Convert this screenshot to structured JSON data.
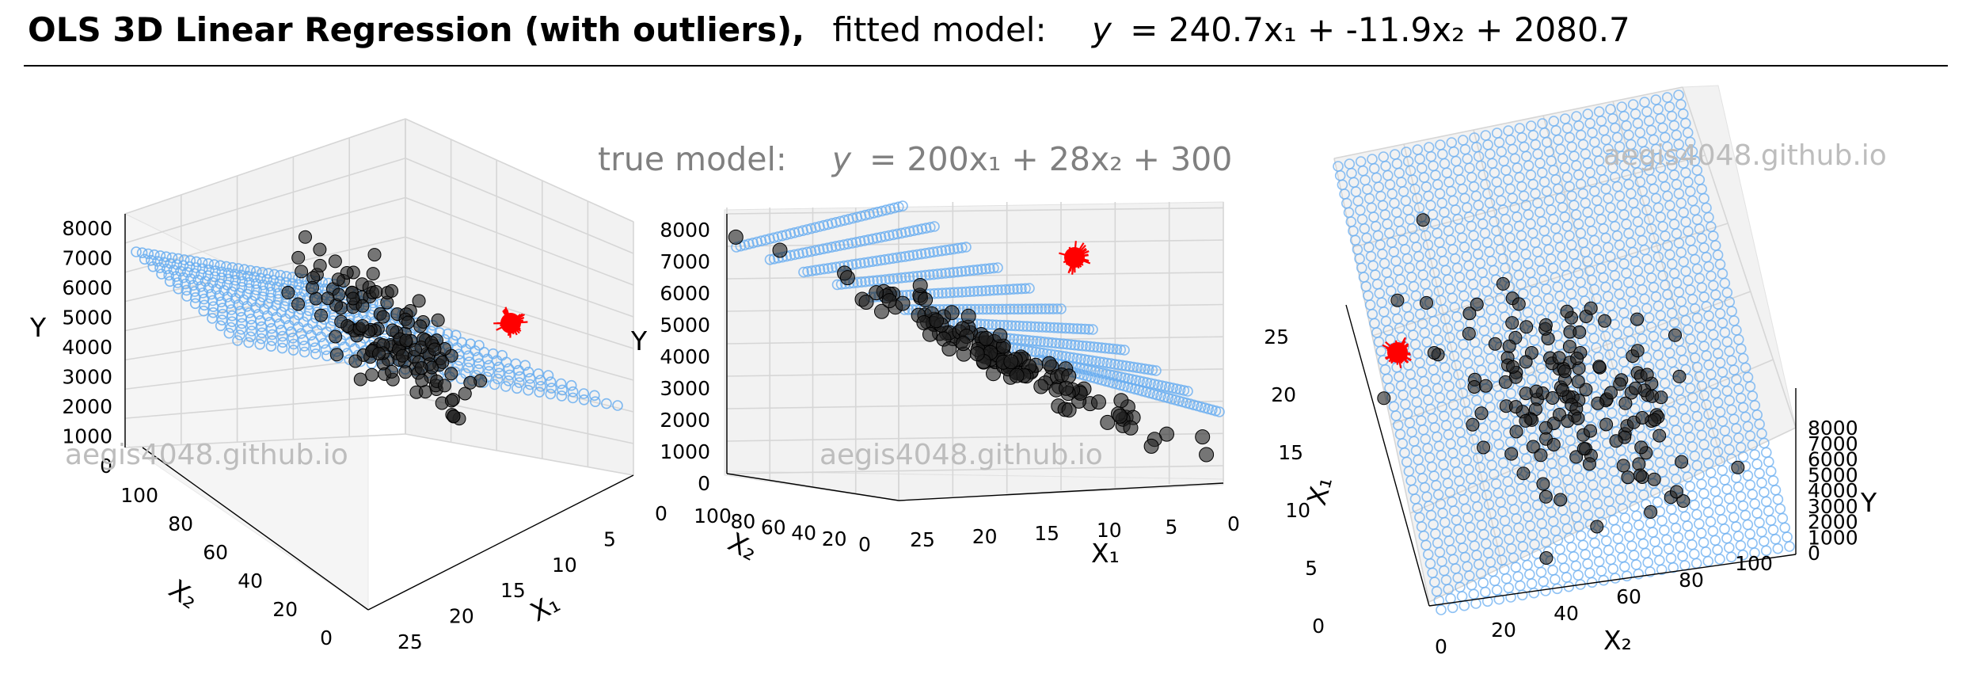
{
  "title": {
    "bold": "OLS 3D Linear Regression (with outliers),",
    "fitted_prefix": "fitted model:",
    "fitted_y": "y",
    "fitted_eq": "= 240.7x₁ + -11.9x₂ + 2080.7"
  },
  "subtitle": {
    "prefix": "true model:",
    "y": "y",
    "eq": "= 200x₁ + 28x₂ + 300"
  },
  "watermark": "aegis4048.github.io",
  "colors": {
    "plane": "#6aaef0",
    "points": "#222222",
    "outliers": "#ff0000",
    "title_rule": "#000000",
    "subtitle": "#808080",
    "watermark": "#bdbdbd"
  },
  "chart_data": [
    {
      "type": "scatter",
      "panel": "left",
      "series": [
        {
          "name": "",
          "kind": "points"
        },
        {
          "name": "",
          "kind": "fitted-plane"
        },
        {
          "name": "",
          "kind": "outliers"
        }
      ],
      "axes": {
        "x1": {
          "label": "X₁",
          "ticks": [
            "0",
            "5",
            "10",
            "15",
            "20",
            "25"
          ],
          "lim": [
            0,
            25
          ]
        },
        "x2": {
          "label": "X₂",
          "ticks": [
            "0",
            "20",
            "40",
            "60",
            "80",
            "100"
          ],
          "lim": [
            0,
            100
          ]
        },
        "y": {
          "label": "Y",
          "ticks": [
            "0",
            "1000",
            "2000",
            "3000",
            "4000",
            "5000",
            "6000",
            "7000",
            "8000"
          ],
          "lim": [
            0,
            8000
          ]
        }
      },
      "view": {
        "elev": 28,
        "azim": 120
      },
      "grid": true
    },
    {
      "type": "scatter",
      "panel": "middle",
      "axes": {
        "x1": {
          "label": "X₁",
          "ticks": [
            "0",
            "5",
            "10",
            "15",
            "20",
            "25"
          ],
          "lim": [
            0,
            25
          ]
        },
        "x2": {
          "label": "X₂",
          "ticks": [
            "0",
            "20",
            "40",
            "60",
            "80",
            "100"
          ],
          "lim": [
            0,
            100
          ]
        },
        "y": {
          "label": "Y",
          "ticks": [
            "0",
            "1000",
            "2000",
            "3000",
            "4000",
            "5000",
            "6000",
            "7000",
            "8000"
          ],
          "lim": [
            0,
            8000
          ]
        }
      },
      "view": {
        "elev": 4,
        "azim": 114
      },
      "grid": true
    },
    {
      "type": "scatter",
      "panel": "right",
      "axes": {
        "x1": {
          "label": "X₁",
          "ticks": [
            "0",
            "5",
            "10",
            "15",
            "20",
            "25"
          ],
          "lim": [
            0,
            25
          ]
        },
        "x2": {
          "label": "X₂",
          "ticks": [
            "0",
            "20",
            "40",
            "60",
            "80",
            "100"
          ],
          "lim": [
            0,
            100
          ]
        },
        "y": {
          "label": "Y",
          "ticks": [
            "0",
            "1000",
            "2000",
            "3000",
            "4000",
            "5000",
            "6000",
            "7000",
            "8000"
          ],
          "lim": [
            0,
            8000
          ]
        }
      },
      "view": {
        "elev": 60,
        "azim": 165
      },
      "grid": true
    }
  ]
}
